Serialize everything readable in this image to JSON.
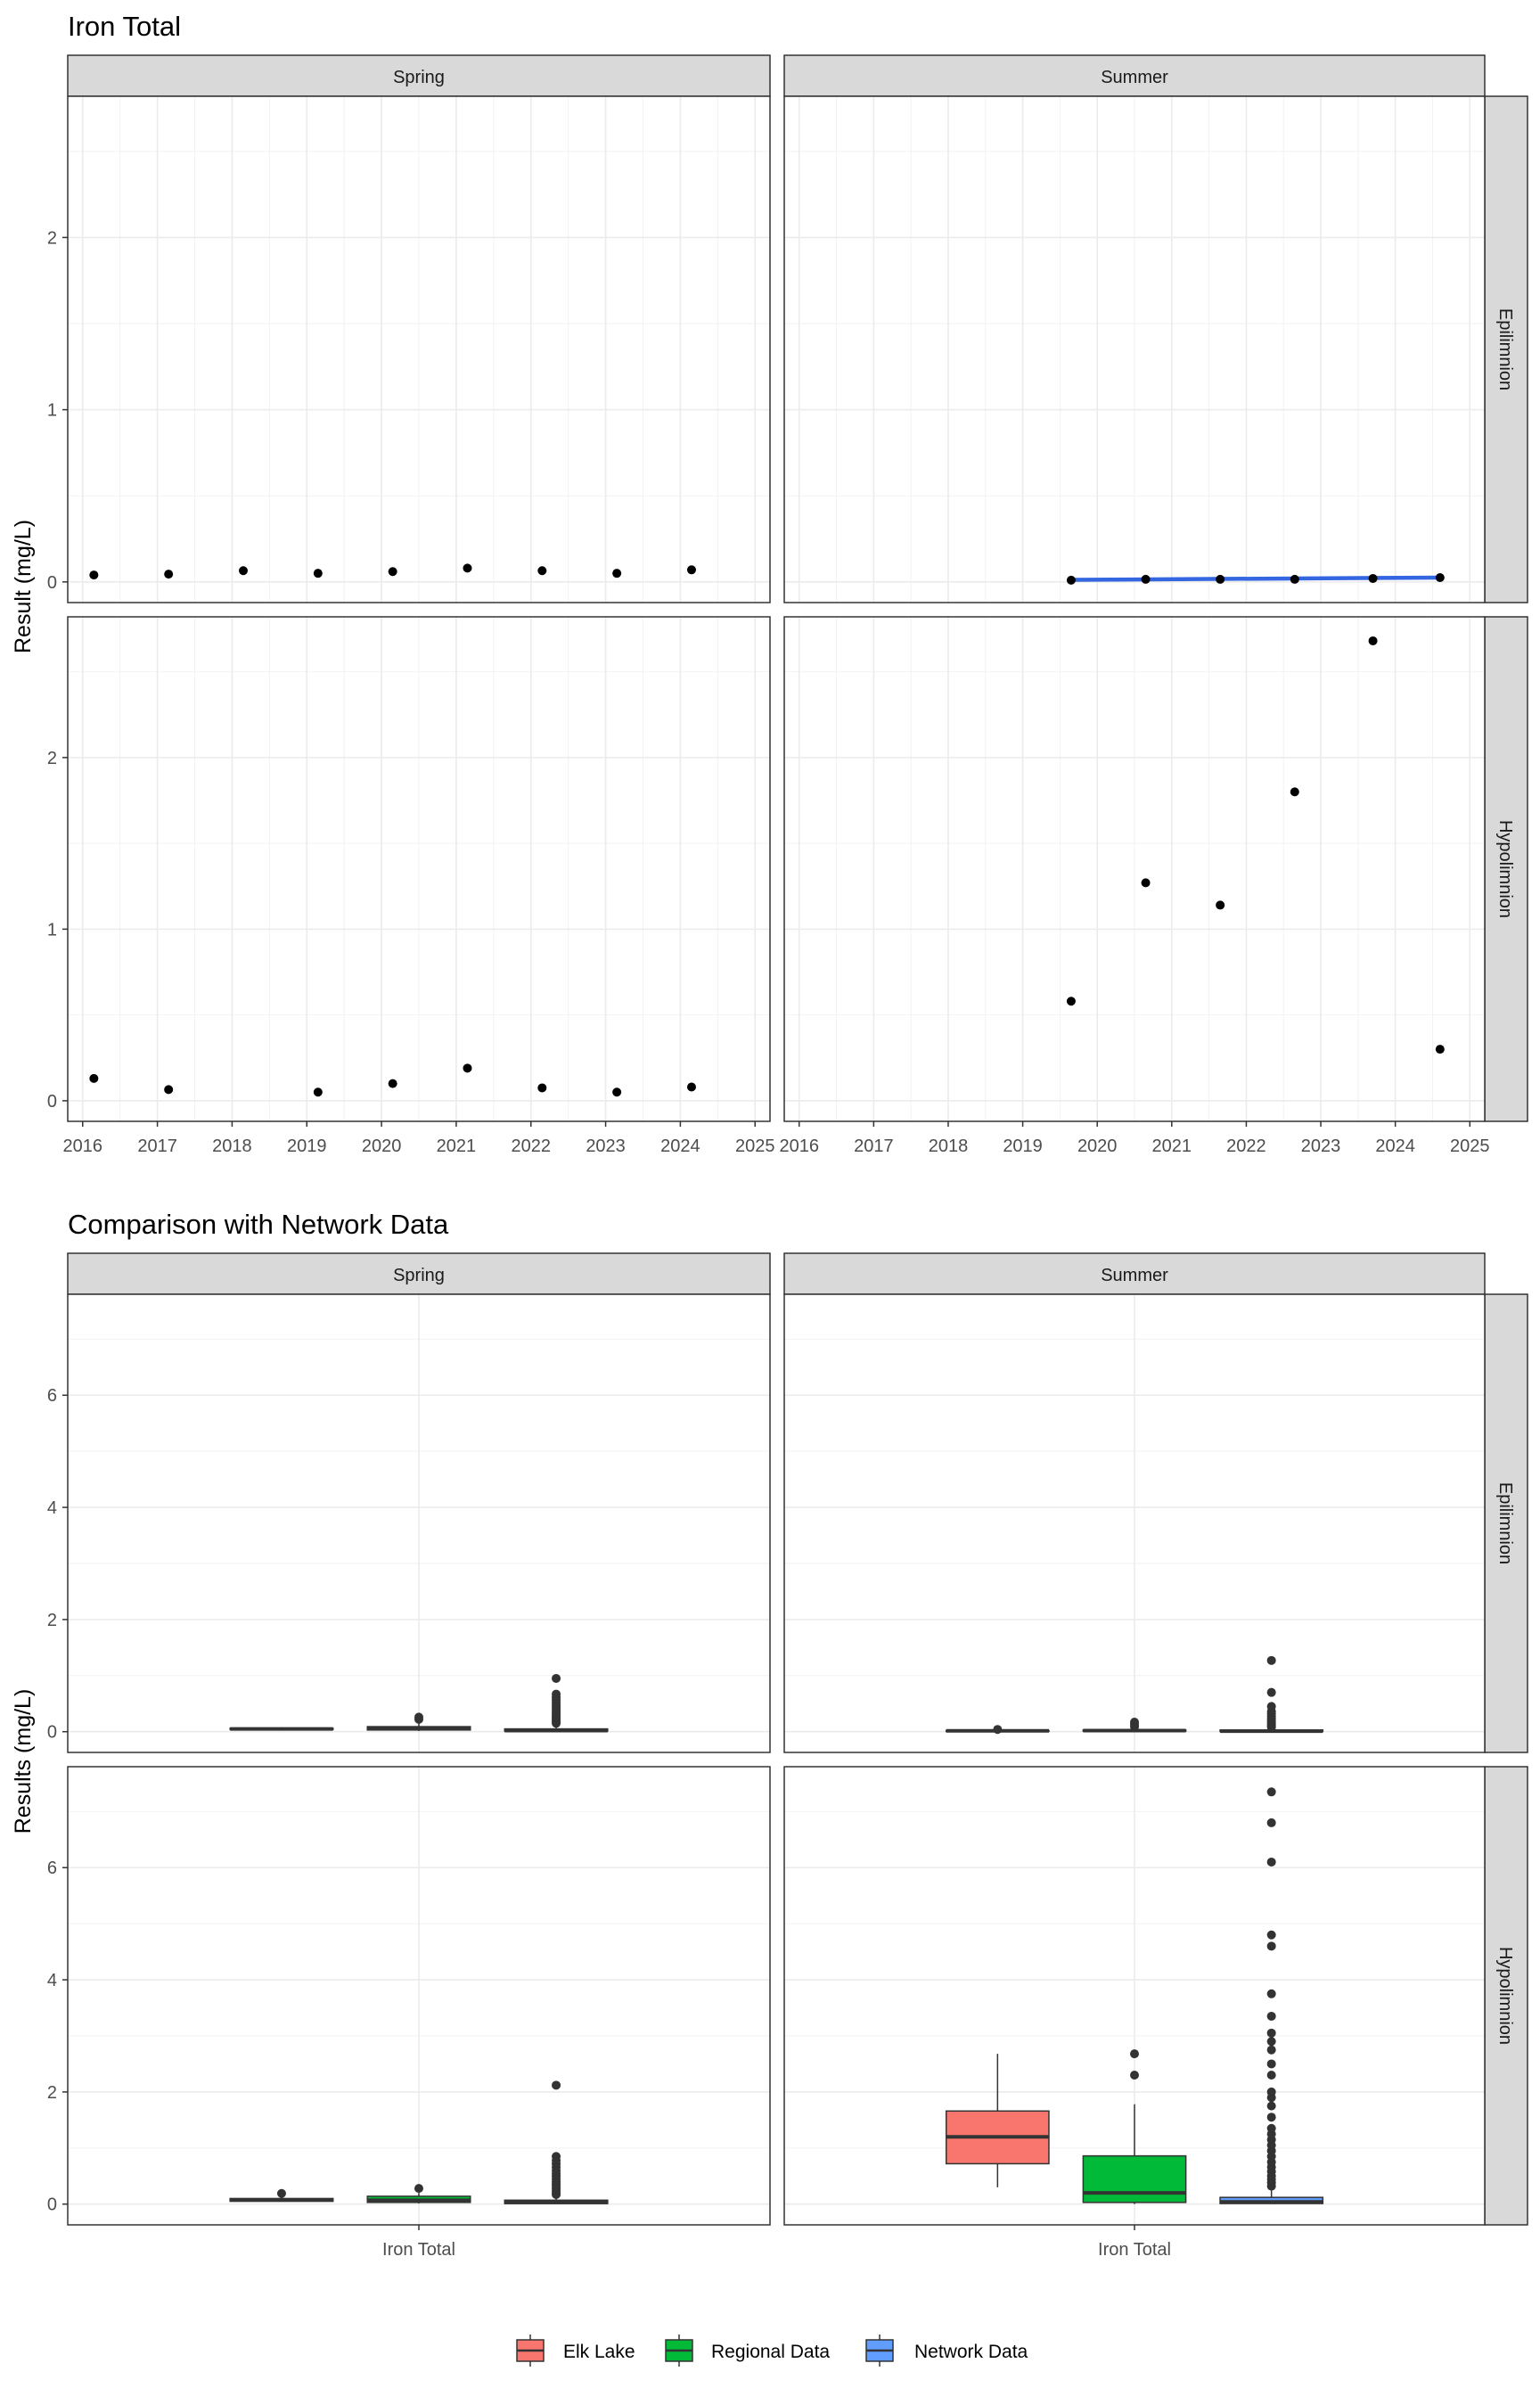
{
  "chart_data": [
    {
      "type": "scatter",
      "title": "Iron Total",
      "xlabel": "",
      "ylabel": "Result (mg/L)",
      "xlim": [
        2015.8,
        2025.2
      ],
      "ylim": [
        -0.12,
        2.82
      ],
      "x_ticks": [
        "2016",
        "2017",
        "2018",
        "2019",
        "2020",
        "2021",
        "2022",
        "2023",
        "2024",
        "2025"
      ],
      "y_ticks": [
        "0",
        "1",
        "2"
      ],
      "columns": [
        "Spring",
        "Summer"
      ],
      "rows": [
        "Epilimnion",
        "Hypolimnion"
      ],
      "panels": [
        {
          "season": "Spring",
          "layer": "Epilimnion",
          "trend_line": null,
          "points": [
            [
              2016.15,
              0.04
            ],
            [
              2017.15,
              0.045
            ],
            [
              2018.15,
              0.065
            ],
            [
              2019.15,
              0.05
            ],
            [
              2020.15,
              0.06
            ],
            [
              2021.15,
              0.08
            ],
            [
              2022.15,
              0.065
            ],
            [
              2023.15,
              0.05
            ],
            [
              2024.15,
              0.07
            ]
          ]
        },
        {
          "season": "Summer",
          "layer": "Epilimnion",
          "trend_line": {
            "color": "#3366e0",
            "x": [
              2019.65,
              2024.6
            ],
            "y": [
              0.012,
              0.025
            ]
          },
          "points": [
            [
              2019.65,
              0.01
            ],
            [
              2020.65,
              0.015
            ],
            [
              2021.65,
              0.015
            ],
            [
              2022.65,
              0.015
            ],
            [
              2023.7,
              0.02
            ],
            [
              2024.6,
              0.025
            ]
          ]
        },
        {
          "season": "Spring",
          "layer": "Hypolimnion",
          "trend_line": null,
          "points": [
            [
              2016.15,
              0.13
            ],
            [
              2017.15,
              0.065
            ],
            [
              2019.15,
              0.05
            ],
            [
              2020.15,
              0.1
            ],
            [
              2021.15,
              0.19
            ],
            [
              2022.15,
              0.075
            ],
            [
              2023.15,
              0.05
            ],
            [
              2024.15,
              0.08
            ]
          ]
        },
        {
          "season": "Summer",
          "layer": "Hypolimnion",
          "trend_line": null,
          "points": [
            [
              2019.65,
              0.58
            ],
            [
              2020.65,
              1.27
            ],
            [
              2021.65,
              1.14
            ],
            [
              2022.65,
              1.8
            ],
            [
              2023.7,
              2.68
            ],
            [
              2024.6,
              0.3
            ]
          ]
        }
      ]
    },
    {
      "type": "box",
      "title": "Comparison with Network Data",
      "xlabel": "",
      "ylabel": "Results (mg/L)",
      "categories": [
        "Iron Total"
      ],
      "ylim": [
        -0.37,
        7.8
      ],
      "y_ticks": [
        "0",
        "2",
        "4",
        "6"
      ],
      "columns": [
        "Spring",
        "Summer"
      ],
      "rows": [
        "Epilimnion",
        "Hypolimnion"
      ],
      "legend": {
        "placement": "bottom",
        "entries": [
          "Elk Lake",
          "Regional Data",
          "Network Data"
        ],
        "colors": [
          "#f8766d",
          "#00ba38",
          "#619cff"
        ]
      },
      "panels": [
        {
          "season": "Spring",
          "layer": "Epilimnion",
          "boxes": [
            {
              "group": "Elk Lake",
              "q1": 0.04,
              "median": 0.05,
              "q3": 0.06,
              "whisker_low": 0.04,
              "whisker_high": 0.08,
              "outliers": []
            },
            {
              "group": "Regional Data",
              "q1": 0.03,
              "median": 0.06,
              "q3": 0.09,
              "whisker_low": 0.01,
              "whisker_high": 0.16,
              "outliers": [
                0.22,
                0.26
              ]
            },
            {
              "group": "Network Data",
              "q1": 0.01,
              "median": 0.02,
              "q3": 0.05,
              "whisker_low": 0.0,
              "whisker_high": 0.11,
              "outliers": [
                0.15,
                0.18,
                0.2,
                0.23,
                0.26,
                0.29,
                0.32,
                0.36,
                0.4,
                0.44,
                0.48,
                0.52,
                0.57,
                0.62,
                0.67,
                0.95
              ]
            }
          ]
        },
        {
          "season": "Summer",
          "layer": "Epilimnion",
          "boxes": [
            {
              "group": "Elk Lake",
              "q1": 0.01,
              "median": 0.015,
              "q3": 0.02,
              "whisker_low": 0.01,
              "whisker_high": 0.025,
              "outliers": [
                0.04
              ]
            },
            {
              "group": "Regional Data",
              "q1": 0.01,
              "median": 0.02,
              "q3": 0.03,
              "whisker_low": 0.0,
              "whisker_high": 0.06,
              "outliers": [
                0.09,
                0.13,
                0.17
              ]
            },
            {
              "group": "Network Data",
              "q1": 0.005,
              "median": 0.01,
              "q3": 0.03,
              "whisker_low": 0.0,
              "whisker_high": 0.06,
              "outliers": [
                0.08,
                0.1,
                0.12,
                0.15,
                0.18,
                0.21,
                0.24,
                0.28,
                0.32,
                0.36,
                0.45,
                0.7,
                1.27
              ]
            }
          ]
        },
        {
          "season": "Spring",
          "layer": "Hypolimnion",
          "boxes": [
            {
              "group": "Elk Lake",
              "q1": 0.05,
              "median": 0.075,
              "q3": 0.1,
              "whisker_low": 0.05,
              "whisker_h": 0.13,
              "whisker_high": 0.13,
              "outliers": [
                0.19
              ]
            },
            {
              "group": "Regional Data",
              "q1": 0.03,
              "median": 0.07,
              "q3": 0.14,
              "whisker_low": 0.01,
              "whisker_high": 0.2,
              "outliers": [
                0.28
              ]
            },
            {
              "group": "Network Data",
              "q1": 0.01,
              "median": 0.03,
              "q3": 0.07,
              "whisker_low": 0.0,
              "whisker_high": 0.14,
              "outliers": [
                0.17,
                0.2,
                0.24,
                0.28,
                0.32,
                0.36,
                0.4,
                0.45,
                0.5,
                0.55,
                0.6,
                0.66,
                0.72,
                0.78,
                0.85,
                2.12
              ]
            }
          ]
        },
        {
          "season": "Summer",
          "layer": "Hypolimnion",
          "boxes": [
            {
              "group": "Elk Lake",
              "q1": 0.72,
              "median": 1.2,
              "q3": 1.66,
              "whisker_low": 0.3,
              "whisker_high": 2.68,
              "outliers": []
            },
            {
              "group": "Regional Data",
              "q1": 0.03,
              "median": 0.2,
              "q3": 0.86,
              "whisker_low": 0.0,
              "whisker_high": 1.78,
              "outliers": [
                2.3,
                2.68
              ]
            },
            {
              "group": "Network Data",
              "q1": 0.01,
              "median": 0.04,
              "q3": 0.12,
              "whisker_low": 0.0,
              "whisker_high": 0.28,
              "outliers": [
                0.32,
                0.38,
                0.44,
                0.5,
                0.58,
                0.66,
                0.75,
                0.85,
                0.95,
                1.05,
                1.15,
                1.25,
                1.35,
                1.55,
                1.75,
                1.9,
                2.0,
                2.3,
                2.5,
                2.75,
                2.9,
                3.05,
                3.35,
                3.75,
                4.6,
                4.8,
                6.1,
                6.8,
                7.35
              ]
            }
          ]
        }
      ]
    }
  ]
}
